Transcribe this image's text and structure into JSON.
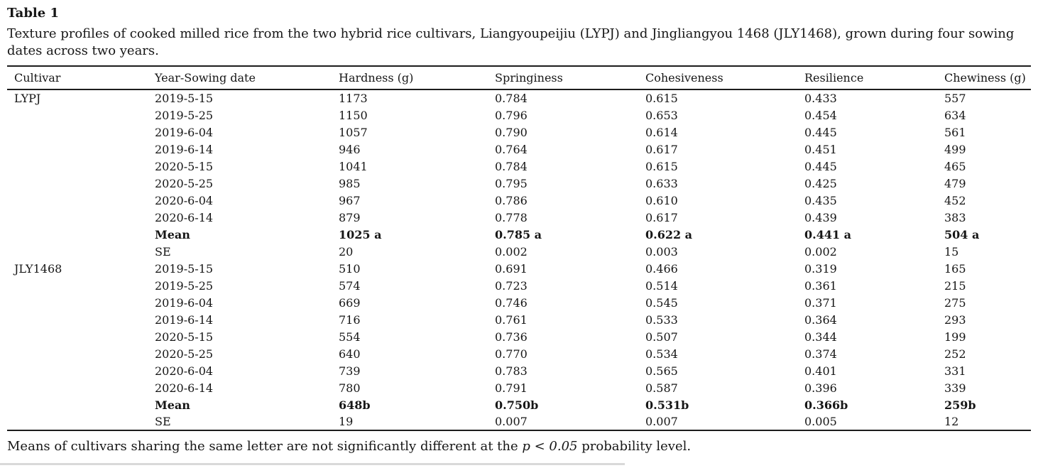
{
  "page": {
    "title": "Table 1",
    "caption": "Texture profiles of cooked milled rice from the two hybrid rice cultivars, Liangyoupeijiu (LYPJ) and Jingliangyou 1468 (JLY1468), grown during four sowing dates across two years.",
    "footnote": {
      "pre": "Means of cultivars sharing the same letter are not significantly different at the ",
      "italic": "p < 0.05",
      "post": " probability level."
    }
  },
  "colors": {
    "text": "#161616",
    "rule": "#1c1c1c",
    "background": "#ffffff"
  },
  "table": {
    "columns": [
      "Cultivar",
      "Year-Sowing date",
      "Hardness (g)",
      "Springiness",
      "Cohesiveness",
      "Resilience",
      "Chewiness (g)"
    ],
    "column_keys": [
      "cultivar",
      "year-sowing-date",
      "hardness",
      "springiness",
      "cohesiveness",
      "resilience",
      "chewiness"
    ],
    "rows": [
      {
        "cultivar": "LYPJ",
        "label": "2019-5-15",
        "bold": false,
        "cells": [
          "1173",
          "0.784",
          "0.615",
          "0.433",
          "557"
        ]
      },
      {
        "cultivar": "",
        "label": "2019-5-25",
        "bold": false,
        "cells": [
          "1150",
          "0.796",
          "0.653",
          "0.454",
          "634"
        ]
      },
      {
        "cultivar": "",
        "label": "2019-6-04",
        "bold": false,
        "cells": [
          "1057",
          "0.790",
          "0.614",
          "0.445",
          "561"
        ]
      },
      {
        "cultivar": "",
        "label": "2019-6-14",
        "bold": false,
        "cells": [
          "946",
          "0.764",
          "0.617",
          "0.451",
          "499"
        ]
      },
      {
        "cultivar": "",
        "label": "2020-5-15",
        "bold": false,
        "cells": [
          "1041",
          "0.784",
          "0.615",
          "0.445",
          "465"
        ]
      },
      {
        "cultivar": "",
        "label": "2020-5-25",
        "bold": false,
        "cells": [
          "985",
          "0.795",
          "0.633",
          "0.425",
          "479"
        ]
      },
      {
        "cultivar": "",
        "label": "2020-6-04",
        "bold": false,
        "cells": [
          "967",
          "0.786",
          "0.610",
          "0.435",
          "452"
        ]
      },
      {
        "cultivar": "",
        "label": "2020-6-14",
        "bold": false,
        "cells": [
          "879",
          "0.778",
          "0.617",
          "0.439",
          "383"
        ]
      },
      {
        "cultivar": "",
        "label": "Mean",
        "bold": true,
        "cells": [
          "1025 a",
          "0.785 a",
          "0.622 a",
          "0.441 a",
          "504 a"
        ]
      },
      {
        "cultivar": "",
        "label": "SE",
        "bold": false,
        "cells": [
          "20",
          "0.002",
          "0.003",
          "0.002",
          "15"
        ]
      },
      {
        "cultivar": "JLY1468",
        "label": "2019-5-15",
        "bold": false,
        "cells": [
          "510",
          "0.691",
          "0.466",
          "0.319",
          "165"
        ]
      },
      {
        "cultivar": "",
        "label": "2019-5-25",
        "bold": false,
        "cells": [
          "574",
          "0.723",
          "0.514",
          "0.361",
          "215"
        ]
      },
      {
        "cultivar": "",
        "label": "2019-6-04",
        "bold": false,
        "cells": [
          "669",
          "0.746",
          "0.545",
          "0.371",
          "275"
        ]
      },
      {
        "cultivar": "",
        "label": "2019-6-14",
        "bold": false,
        "cells": [
          "716",
          "0.761",
          "0.533",
          "0.364",
          "293"
        ]
      },
      {
        "cultivar": "",
        "label": "2020-5-15",
        "bold": false,
        "cells": [
          "554",
          "0.736",
          "0.507",
          "0.344",
          "199"
        ]
      },
      {
        "cultivar": "",
        "label": "2020-5-25",
        "bold": false,
        "cells": [
          "640",
          "0.770",
          "0.534",
          "0.374",
          "252"
        ]
      },
      {
        "cultivar": "",
        "label": "2020-6-04",
        "bold": false,
        "cells": [
          "739",
          "0.783",
          "0.565",
          "0.401",
          "331"
        ]
      },
      {
        "cultivar": "",
        "label": "2020-6-14",
        "bold": false,
        "cells": [
          "780",
          "0.791",
          "0.587",
          "0.396",
          "339"
        ]
      },
      {
        "cultivar": "",
        "label": "Mean",
        "bold": true,
        "cells": [
          "648b",
          "0.750b",
          "0.531b",
          "0.366b",
          "259b"
        ]
      },
      {
        "cultivar": "",
        "label": "SE",
        "bold": false,
        "cells": [
          "19",
          "0.007",
          "0.007",
          "0.005",
          "12"
        ]
      }
    ]
  }
}
